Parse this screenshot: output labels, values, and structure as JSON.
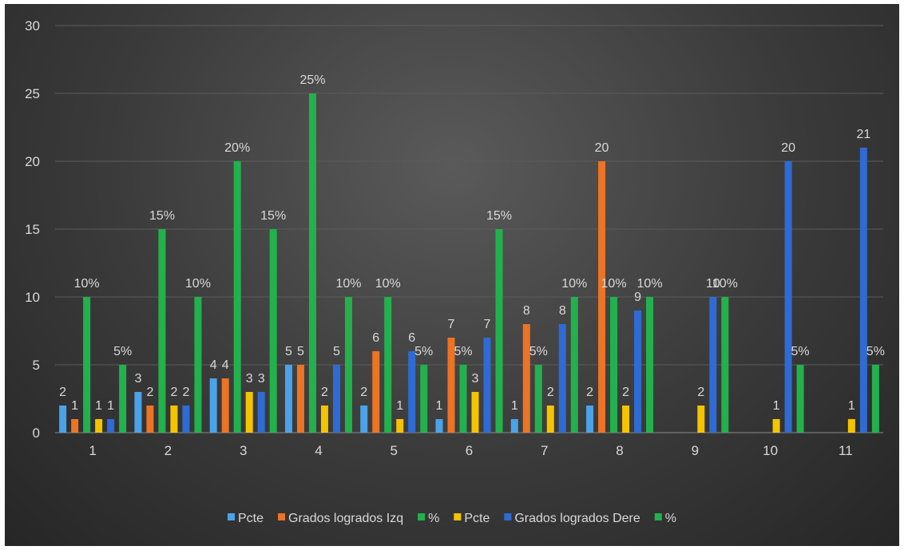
{
  "chart_data": {
    "type": "bar",
    "categories": [
      "1",
      "2",
      "3",
      "4",
      "5",
      "6",
      "7",
      "8",
      "9",
      "10",
      "11"
    ],
    "ylim": [
      0,
      30
    ],
    "yticks": [
      "0",
      "5",
      "10",
      "15",
      "20",
      "25",
      "30"
    ],
    "grid": true,
    "legend_position": "bottom",
    "series": [
      {
        "name": "Pcte",
        "color": "#4aa3e8",
        "values": [
          2,
          3,
          4,
          5,
          2,
          1,
          1,
          2,
          null,
          null,
          null
        ],
        "labels": [
          "2",
          "3",
          "4",
          "5",
          "2",
          "1",
          "1",
          "2",
          "",
          "",
          ""
        ]
      },
      {
        "name": "Grados logrados Izq",
        "color": "#ec7424",
        "values": [
          1,
          2,
          4,
          5,
          6,
          7,
          8,
          20,
          null,
          null,
          null
        ],
        "labels": [
          "1",
          "2",
          "4",
          "5",
          "6",
          "7",
          "8",
          "20",
          "",
          "",
          ""
        ]
      },
      {
        "name": "%",
        "color": "#23b14d",
        "values": [
          10,
          15,
          20,
          25,
          10,
          5,
          5,
          10,
          null,
          null,
          null
        ],
        "labels": [
          "10%",
          "15%",
          "20%",
          "25%",
          "10%",
          "5%",
          "5%",
          "10%",
          "",
          "",
          ""
        ]
      },
      {
        "name": "Pcte",
        "color": "#f5c400",
        "values": [
          1,
          2,
          3,
          2,
          1,
          3,
          2,
          2,
          2,
          1,
          1
        ],
        "labels": [
          "1",
          "2",
          "3",
          "2",
          "1",
          "3",
          "2",
          "2",
          "2",
          "1",
          "1"
        ]
      },
      {
        "name": "Grados logrados Dere",
        "color": "#2f6bd4",
        "values": [
          1,
          2,
          3,
          5,
          6,
          7,
          8,
          9,
          10,
          20,
          21
        ],
        "labels": [
          "1",
          "2",
          "3",
          "5",
          "6",
          "7",
          "8",
          "9",
          "10",
          "20",
          "21"
        ]
      },
      {
        "name": "%",
        "color": "#23b14d",
        "values": [
          5,
          10,
          15,
          10,
          5,
          15,
          10,
          10,
          10,
          5,
          5
        ],
        "labels": [
          "5%",
          "10%",
          "15%",
          "10%",
          "5%",
          "15%",
          "10%",
          "10%",
          "10%",
          "5%",
          "5%"
        ]
      }
    ]
  }
}
